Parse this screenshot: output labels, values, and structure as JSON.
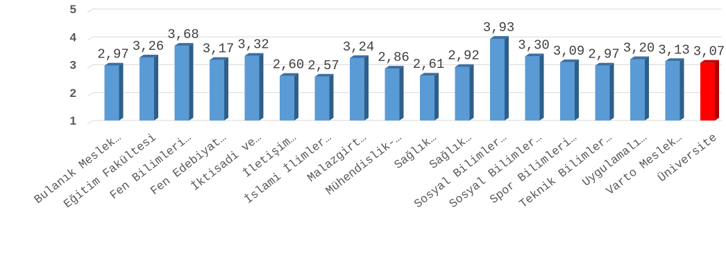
{
  "chart_data": {
    "type": "bar",
    "categories": [
      "Bulanık Meslek…",
      "Eğitim Fakültesi",
      "Fen Bilimleri…",
      "Fen Edebiyat…",
      "İktisadi ve…",
      "İletişim…",
      "İslami İlimler…",
      "Malazgirt…",
      "Mühendislik-…",
      "Sağlık…",
      "Sağlık…",
      "Sosyal Bilimler…",
      "Sosyal Bilimler…",
      "Spor Bilimleri…",
      "Teknik Bilimler…",
      "Uygulamalı…",
      "Varto Meslek…",
      "Üniversite"
    ],
    "values": [
      2.97,
      3.26,
      3.68,
      3.17,
      3.32,
      2.6,
      2.57,
      3.24,
      2.86,
      2.61,
      2.92,
      3.93,
      3.3,
      3.09,
      2.97,
      3.2,
      3.13,
      3.07
    ],
    "value_labels": [
      "2,97",
      "3,26",
      "3,68",
      "3,17",
      "3,32",
      "2,60",
      "2,57",
      "3,24",
      "2,86",
      "2,61",
      "2,92",
      "3,93",
      "3,30",
      "3,09",
      "2,97",
      "3,20",
      "3,13",
      "3,07"
    ],
    "ylim": [
      1,
      5
    ],
    "yticks": [
      "1",
      "2",
      "3",
      "4",
      "5"
    ],
    "grid": true,
    "colors": {
      "bar": "#5b9bd5",
      "bar_side": "#2e5f8a",
      "bar_top": "#3c70a4",
      "highlight": "#ff0000",
      "highlight_side": "#a80000",
      "highlight_top": "#c00000"
    },
    "highlight_index": 17
  }
}
